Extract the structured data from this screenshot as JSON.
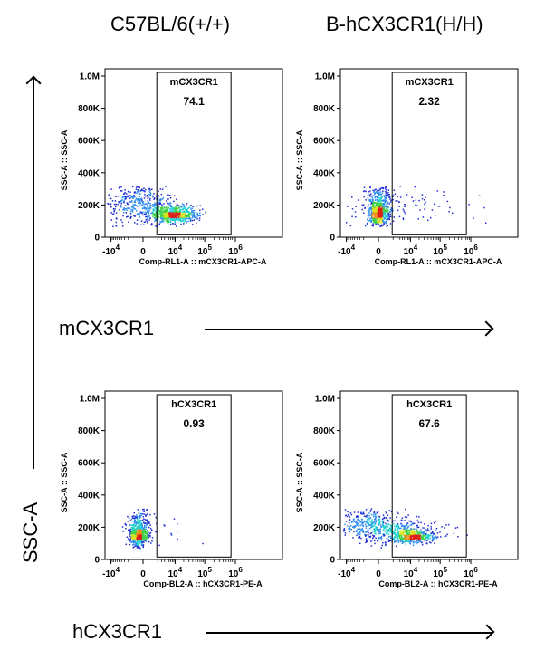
{
  "column_titles": [
    "C57BL/6(+/+)",
    "B-hCX3CR1(H/H)"
  ],
  "row_axis_labels": [
    "mCX3CR1",
    "hCX3CR1"
  ],
  "y_axis_label": "SSC-A",
  "chart_data": [
    {
      "type": "scatter",
      "plot_type": "flow-cytometry-density",
      "sample": "C57BL/6(+/+)",
      "xlabel": "Comp-RL1-A :: mCX3CR1-APC-A",
      "ylabel": "SSC-A :: SSC-A",
      "y_ticks": [
        "0",
        "200K",
        "400K",
        "600K",
        "800K",
        "1.0M"
      ],
      "x_ticks": [
        "-10^4",
        "0",
        "10^4",
        "10^5",
        "10^6"
      ],
      "x_scale": "biexponential",
      "ylim": [
        0,
        1000000
      ],
      "gate": {
        "name": "mCX3CR1",
        "percent": "74.1"
      },
      "population": {
        "x_center": 10000,
        "y_center": 150000,
        "main_color": "density"
      }
    },
    {
      "type": "scatter",
      "plot_type": "flow-cytometry-density",
      "sample": "B-hCX3CR1(H/H)",
      "xlabel": "Comp-RL1-A :: mCX3CR1-APC-A",
      "ylabel": "SSC-A :: SSC-A",
      "y_ticks": [
        "0",
        "200K",
        "400K",
        "600K",
        "800K",
        "1.0M"
      ],
      "x_ticks": [
        "-10^4",
        "0",
        "10^4",
        "10^5",
        "10^6"
      ],
      "x_scale": "biexponential",
      "ylim": [
        0,
        1000000
      ],
      "gate": {
        "name": "mCX3CR1",
        "percent": "2.32"
      },
      "population": {
        "x_center": 0,
        "y_center": 150000,
        "main_color": "density"
      }
    },
    {
      "type": "scatter",
      "plot_type": "flow-cytometry-density",
      "sample": "C57BL/6(+/+)",
      "xlabel": "Comp-BL2-A :: hCX3CR1-PE-A",
      "ylabel": "SSC-A :: SSC-A",
      "y_ticks": [
        "0",
        "200K",
        "400K",
        "600K",
        "800K",
        "1.0M"
      ],
      "x_ticks": [
        "-10^4",
        "0",
        "10^4",
        "10^5",
        "10^6"
      ],
      "x_scale": "biexponential",
      "ylim": [
        0,
        1000000
      ],
      "gate": {
        "name": "hCX3CR1",
        "percent": "0.93"
      },
      "population": {
        "x_center": -500,
        "y_center": 150000,
        "main_color": "density"
      }
    },
    {
      "type": "scatter",
      "plot_type": "flow-cytometry-density",
      "sample": "B-hCX3CR1(H/H)",
      "xlabel": "Comp-BL2-A :: hCX3CR1-PE-A",
      "ylabel": "SSC-A :: SSC-A",
      "y_ticks": [
        "0",
        "200K",
        "400K",
        "600K",
        "800K",
        "1.0M"
      ],
      "x_ticks": [
        "-10^4",
        "0",
        "10^4",
        "10^5",
        "10^6"
      ],
      "x_scale": "biexponential",
      "ylim": [
        0,
        1000000
      ],
      "gate": {
        "name": "hCX3CR1",
        "percent": "67.6"
      },
      "population": {
        "x_center": 10000,
        "y_center": 150000,
        "main_color": "density"
      }
    }
  ]
}
